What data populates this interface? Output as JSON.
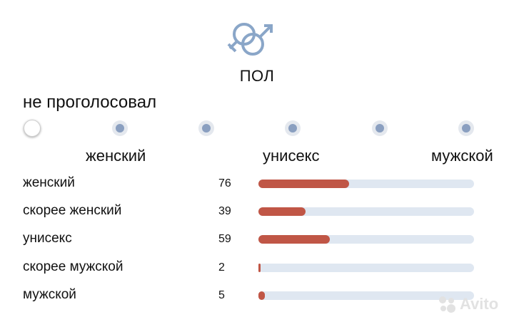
{
  "section": {
    "title": "ПОЛ",
    "icon": "gender-icon",
    "icon_color": "#8aa6c8"
  },
  "status": "не проголосовал",
  "scale": {
    "points": 6,
    "selected_index": 0,
    "labels": {
      "left": "женский",
      "center": "унисекс",
      "right": "мужской"
    }
  },
  "results": [
    {
      "label": "женский",
      "count": "76",
      "fraction": 0.42
    },
    {
      "label": "скорее женский",
      "count": "39",
      "fraction": 0.22
    },
    {
      "label": "унисекс",
      "count": "59",
      "fraction": 0.33
    },
    {
      "label": "скорее мужской",
      "count": "2",
      "fraction": 0.01
    },
    {
      "label": "мужской",
      "count": "5",
      "fraction": 0.03
    }
  ],
  "colors": {
    "bar_fill": "#c05646",
    "bar_track": "#dfe7f1",
    "dot": "#8a9fc0"
  },
  "watermark": {
    "text": "Avito"
  }
}
